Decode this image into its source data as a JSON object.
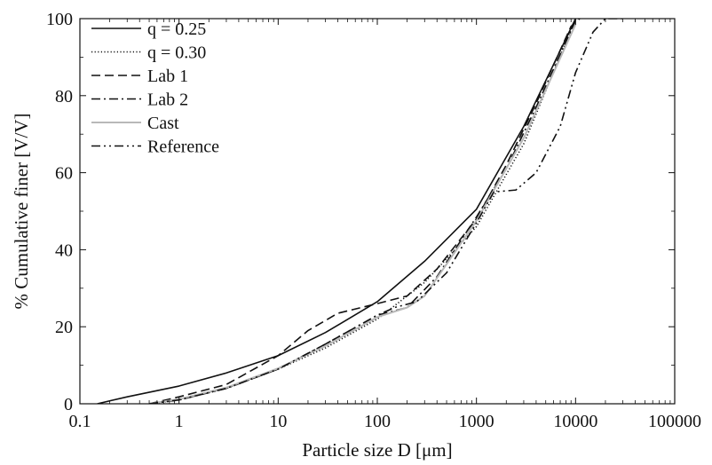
{
  "chart_data": {
    "type": "line",
    "xlabel": "Particle size D [μm]",
    "ylabel": "% Cumulative finer [V/V]",
    "xscale": "log",
    "xlim": [
      0.1,
      100000
    ],
    "ylim": [
      0,
      100
    ],
    "x_ticks": [
      0.1,
      1,
      10,
      100,
      1000,
      10000,
      100000
    ],
    "x_tick_labels": [
      "0.1",
      "1",
      "10",
      "100",
      "1000",
      "10000",
      "100000"
    ],
    "y_ticks": [
      0,
      20,
      40,
      60,
      80,
      100
    ],
    "y_tick_labels": [
      "0",
      "20",
      "40",
      "60",
      "80",
      "100"
    ],
    "grid": false,
    "legend_position": "top-left",
    "series": [
      {
        "name": "q = 0.25",
        "style": "solid",
        "color": "#111111",
        "x": [
          0.15,
          0.3,
          1,
          3,
          10,
          30,
          100,
          300,
          1000,
          3000,
          10000
        ],
        "y": [
          0,
          1.8,
          4.6,
          8.0,
          12.5,
          18.5,
          26.5,
          37.0,
          50.5,
          72.0,
          100
        ]
      },
      {
        "name": "q = 0.30",
        "style": "dotted",
        "color": "#111111",
        "x": [
          0.5,
          1,
          3,
          10,
          30,
          100,
          300,
          1000,
          3000,
          10000
        ],
        "y": [
          0,
          1.0,
          4.0,
          9.0,
          14.5,
          22.0,
          31.5,
          46.0,
          67.5,
          100
        ]
      },
      {
        "name": "Lab 1",
        "style": "dashed",
        "color": "#111111",
        "x": [
          0.5,
          1,
          3,
          10,
          20,
          40,
          100,
          200,
          400,
          1000,
          2000,
          4000,
          9000,
          11000
        ],
        "y": [
          0,
          1.8,
          5.0,
          12.5,
          19.0,
          23.5,
          26.0,
          28.0,
          35.0,
          48.0,
          62.0,
          78.0,
          98.0,
          100
        ]
      },
      {
        "name": "Lab 2",
        "style": "dashdot",
        "color": "#111111",
        "x": [
          0.5,
          1,
          3,
          10,
          30,
          100,
          200,
          400,
          1000,
          2000,
          4000,
          10000
        ],
        "y": [
          0,
          1.0,
          4.0,
          9.0,
          15.5,
          23.0,
          25.0,
          33.0,
          48.5,
          61.0,
          77.0,
          99.5
        ]
      },
      {
        "name": "Cast",
        "style": "solid",
        "color": "#b8b8b8",
        "x": [
          0.5,
          1,
          3,
          10,
          30,
          100,
          200,
          300,
          1000,
          3000,
          10000
        ],
        "y": [
          0,
          1.2,
          4.2,
          9.2,
          15.0,
          22.5,
          25.0,
          28.0,
          47.5,
          69.0,
          98.5
        ]
      },
      {
        "name": "Reference",
        "style": "dashdotdot",
        "color": "#111111",
        "x": [
          0.5,
          1,
          3,
          10,
          30,
          100,
          150,
          250,
          500,
          1000,
          1500,
          2500,
          4000,
          7000,
          10000,
          15000,
          20000,
          30000
        ],
        "y": [
          0,
          1.0,
          4.0,
          9.0,
          15.5,
          23.0,
          25.0,
          26.5,
          34.0,
          47.0,
          55.0,
          55.5,
          60.0,
          72.0,
          86.0,
          96.5,
          100,
          100
        ]
      }
    ]
  }
}
